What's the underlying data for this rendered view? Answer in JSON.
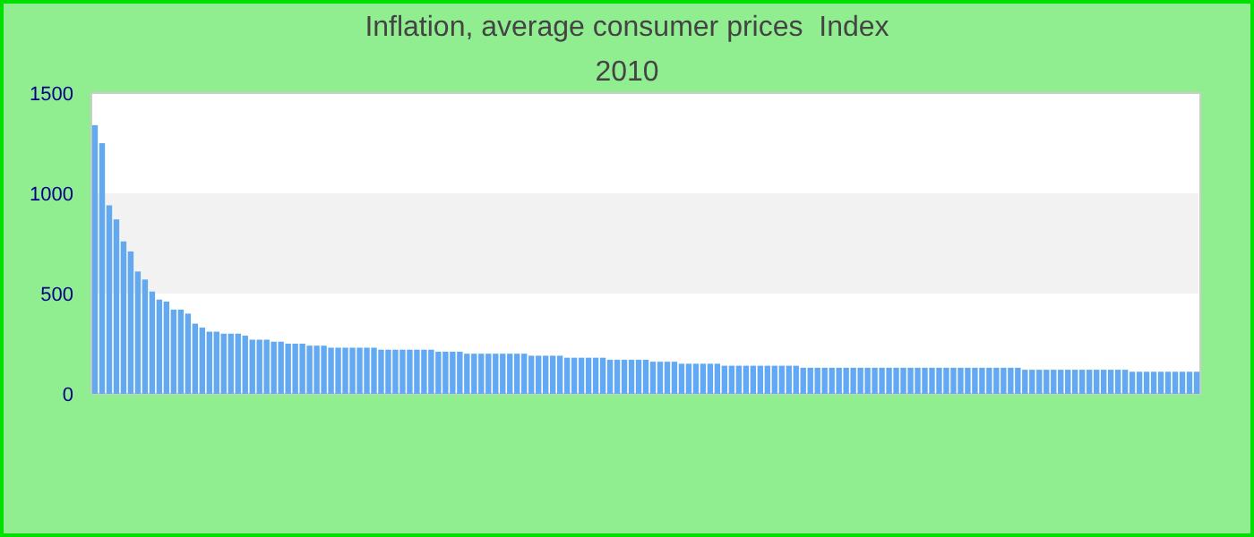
{
  "chart_data": {
    "type": "bar",
    "title": "Inflation, average consumer prices  Index 2010",
    "categories": [
      null,
      null,
      null,
      null,
      null,
      null,
      null,
      null,
      null,
      null,
      null,
      null,
      null,
      null,
      null,
      null,
      null,
      null,
      null,
      null,
      null,
      null,
      null,
      null,
      null,
      null,
      null,
      null,
      null,
      null,
      null,
      null,
      null,
      null,
      null,
      null,
      null,
      null,
      null,
      null,
      null,
      null,
      null,
      null,
      null,
      null,
      null,
      null,
      null,
      null,
      null,
      null,
      null,
      null,
      null,
      null,
      null,
      null,
      null,
      null,
      null,
      null,
      null,
      null,
      null,
      null,
      null,
      null,
      null,
      null,
      null,
      null,
      null,
      null,
      null,
      null,
      null,
      null,
      null,
      null,
      null,
      null,
      null,
      null,
      null,
      null,
      null,
      null,
      null,
      null,
      null,
      null,
      null,
      null,
      null,
      null,
      null,
      null,
      null,
      null,
      null,
      null,
      null,
      null,
      null,
      null,
      null,
      null,
      null,
      null,
      null,
      null,
      null,
      null,
      null,
      null,
      null,
      null,
      null,
      null,
      null,
      null,
      null,
      null,
      null,
      null,
      null,
      null,
      null,
      null,
      null,
      null,
      null,
      null,
      null,
      null,
      null,
      null,
      null,
      null,
      null,
      null,
      null,
      null,
      null,
      null,
      null,
      null,
      null,
      null,
      null,
      null,
      null,
      null,
      null
    ],
    "values": [
      1340,
      1250,
      940,
      870,
      760,
      710,
      610,
      570,
      510,
      470,
      460,
      420,
      420,
      400,
      350,
      330,
      310,
      310,
      300,
      300,
      300,
      290,
      270,
      270,
      270,
      260,
      260,
      250,
      250,
      250,
      240,
      240,
      240,
      230,
      230,
      230,
      230,
      230,
      230,
      230,
      220,
      220,
      220,
      220,
      220,
      220,
      220,
      220,
      210,
      210,
      210,
      210,
      200,
      200,
      200,
      200,
      200,
      200,
      200,
      200,
      200,
      190,
      190,
      190,
      190,
      190,
      180,
      180,
      180,
      180,
      180,
      180,
      170,
      170,
      170,
      170,
      170,
      170,
      160,
      160,
      160,
      160,
      150,
      150,
      150,
      150,
      150,
      150,
      140,
      140,
      140,
      140,
      140,
      140,
      140,
      140,
      140,
      140,
      140,
      130,
      130,
      130,
      130,
      130,
      130,
      130,
      130,
      130,
      130,
      130,
      130,
      130,
      130,
      130,
      130,
      130,
      130,
      130,
      130,
      130,
      130,
      130,
      130,
      130,
      130,
      130,
      130,
      130,
      130,
      130,
      120,
      120,
      120,
      120,
      120,
      120,
      120,
      120,
      120,
      120,
      120,
      120,
      120,
      120,
      120,
      110,
      110,
      110,
      110,
      110,
      110,
      110,
      110,
      110,
      110
    ],
    "color": "#62a9f2",
    "ylim": [
      0,
      1500
    ],
    "yticks": [
      0,
      500,
      1000,
      1500
    ],
    "bands": [
      {
        "axis": "y",
        "from": 500,
        "to": 1000,
        "color": "#f2f2f2"
      }
    ]
  }
}
